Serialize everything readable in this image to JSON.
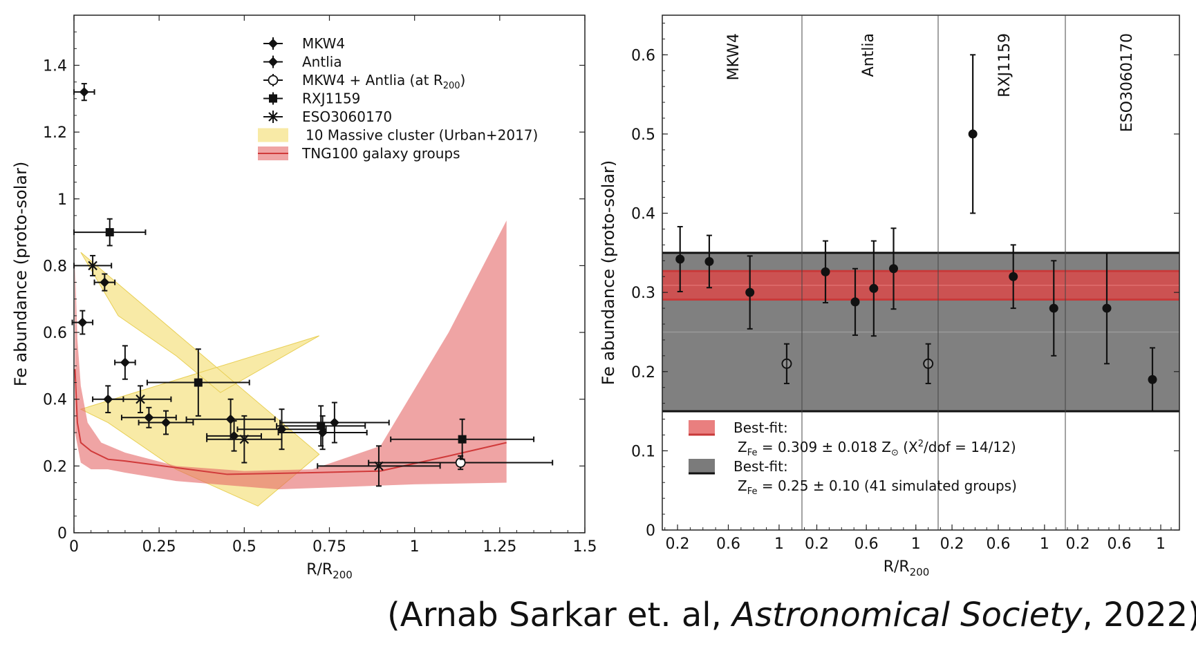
{
  "left": {
    "chart_data": {
      "type": "scatter",
      "xlabel": "R/R",
      "xlabel_sub": "200",
      "ylabel": "Fe abundance (proto-solar)",
      "xlim": [
        0,
        1.5
      ],
      "ylim": [
        0,
        1.55
      ],
      "xticks": [
        0,
        0.25,
        0.5,
        0.75,
        1,
        1.25,
        1.5
      ],
      "xtick_labels": [
        "0",
        "0.25",
        "0.5",
        "0.75",
        "1",
        "1.25",
        "1.5"
      ],
      "yticks": [
        0,
        0.2,
        0.4,
        0.6,
        0.8,
        1,
        1.2,
        1.4
      ],
      "ytick_labels": [
        "0",
        "0.2",
        "0.4",
        "0.6",
        "0.8",
        "1",
        "1.2",
        "1.4"
      ],
      "legend_position": "top-right",
      "series": [
        {
          "name": "MKW4",
          "marker": "diamond-filled",
          "points": [
            {
              "x": 0.03,
              "y": 1.32,
              "xe": 0.03,
              "ye": 0.025
            },
            {
              "x": 0.09,
              "y": 0.75,
              "xe": 0.03,
              "ye": 0.025
            },
            {
              "x": 0.15,
              "y": 0.51,
              "xe": 0.03,
              "ye": 0.05
            },
            {
              "x": 0.27,
              "y": 0.33,
              "xe": 0.08,
              "ye": 0.035
            },
            {
              "x": 0.46,
              "y": 0.34,
              "xe": 0.13,
              "ye": 0.06
            },
            {
              "x": 0.61,
              "y": 0.31,
              "xe": 0.13,
              "ye": 0.06
            }
          ]
        },
        {
          "name": "Antlia",
          "marker": "diamond-filled",
          "points": [
            {
              "x": 0.025,
              "y": 0.63,
              "xe": 0.03,
              "ye": 0.035
            },
            {
              "x": 0.1,
              "y": 0.4,
              "xe": 0.045,
              "ye": 0.04
            },
            {
              "x": 0.22,
              "y": 0.345,
              "xe": 0.08,
              "ye": 0.03
            },
            {
              "x": 0.47,
              "y": 0.29,
              "xe": 0.08,
              "ye": 0.045
            },
            {
              "x": 0.73,
              "y": 0.3,
              "xe": 0.13,
              "ye": 0.05
            },
            {
              "x": 0.765,
              "y": 0.33,
              "xe": 0.16,
              "ye": 0.06
            }
          ]
        },
        {
          "name": "MKW4 + Antlia (at R",
          "name_sub": "200",
          "name_tail": ")",
          "marker": "circle-open",
          "points": [
            {
              "x": 1.135,
              "y": 0.21,
              "xe": 0.27,
              "ye": 0.02
            }
          ]
        },
        {
          "name": "RXJ1159",
          "marker": "square-filled",
          "points": [
            {
              "x": 0.105,
              "y": 0.9,
              "xe": 0.105,
              "ye": 0.04
            },
            {
              "x": 0.365,
              "y": 0.45,
              "xe": 0.15,
              "ye": 0.1
            },
            {
              "x": 0.725,
              "y": 0.32,
              "xe": 0.13,
              "ye": 0.06
            },
            {
              "x": 1.14,
              "y": 0.28,
              "xe": 0.21,
              "ye": 0.06
            }
          ]
        },
        {
          "name": "ESO3060170",
          "marker": "x-star",
          "points": [
            {
              "x": 0.055,
              "y": 0.8,
              "xe": 0.055,
              "ye": 0.03
            },
            {
              "x": 0.195,
              "y": 0.4,
              "xe": 0.09,
              "ye": 0.04
            },
            {
              "x": 0.5,
              "y": 0.28,
              "xe": 0.11,
              "ye": 0.07
            },
            {
              "x": 0.895,
              "y": 0.2,
              "xe": 0.18,
              "ye": 0.06
            }
          ]
        }
      ],
      "bands": [
        {
          "name": "10 Massive cluster (Urban+2017)",
          "color": "#f3d85c",
          "opacity": 0.55,
          "upper": [
            [
              0.02,
              0.84
            ],
            [
              0.13,
              0.65
            ],
            [
              0.3,
              0.53
            ],
            [
              0.43,
              0.42
            ],
            [
              0.72,
              0.59
            ]
          ],
          "lower": [
            [
              0.02,
              0.37
            ],
            [
              0.1,
              0.33
            ],
            [
              0.3,
              0.19
            ],
            [
              0.54,
              0.08
            ],
            [
              0.72,
              0.235
            ]
          ]
        },
        {
          "name": "TNG100 galaxy groups",
          "color": "#e56868",
          "opacity": 0.6,
          "upper": [
            [
              0.003,
              0.81
            ],
            [
              0.01,
              0.58
            ],
            [
              0.02,
              0.44
            ],
            [
              0.04,
              0.33
            ],
            [
              0.08,
              0.27
            ],
            [
              0.15,
              0.24
            ],
            [
              0.3,
              0.2
            ],
            [
              0.5,
              0.185
            ],
            [
              0.7,
              0.19
            ],
            [
              0.9,
              0.26
            ],
            [
              1.1,
              0.6
            ],
            [
              1.27,
              0.935
            ]
          ],
          "lower": [
            [
              1.27,
              0.15
            ],
            [
              1.0,
              0.145
            ],
            [
              0.6,
              0.13
            ],
            [
              0.3,
              0.155
            ],
            [
              0.15,
              0.18
            ],
            [
              0.1,
              0.19
            ],
            [
              0.05,
              0.19
            ],
            [
              0.02,
              0.21
            ],
            [
              0.003,
              0.3
            ]
          ],
          "median": [
            [
              0.003,
              0.49
            ],
            [
              0.01,
              0.33
            ],
            [
              0.02,
              0.27
            ],
            [
              0.05,
              0.245
            ],
            [
              0.1,
              0.22
            ],
            [
              0.15,
              0.215
            ],
            [
              0.3,
              0.195
            ],
            [
              0.45,
              0.175
            ],
            [
              0.7,
              0.18
            ],
            [
              0.9,
              0.185
            ],
            [
              1.1,
              0.23
            ],
            [
              1.27,
              0.27
            ]
          ]
        }
      ]
    }
  },
  "right": {
    "chart_data": {
      "type": "scatter",
      "xlabel": "R/R",
      "xlabel_sub": "200",
      "ylabel": "Fe abundance (proto-solar)",
      "ylim": [
        0,
        0.65
      ],
      "yticks": [
        0,
        0.1,
        0.2,
        0.3,
        0.4,
        0.5,
        0.6
      ],
      "ytick_labels": [
        "0",
        "0.1",
        "0.2",
        "0.3",
        "0.4",
        "0.5",
        "0.6"
      ],
      "xtick_labels": [
        "0.2",
        "0.6",
        "1",
        "0.2",
        "0.6",
        "1",
        "0.2",
        "0.6",
        "1",
        "0.2",
        "0.6",
        "1"
      ],
      "panels": [
        {
          "label": "MKW4",
          "xlim": [
            0.08,
            1.18
          ],
          "ticks": [
            0.2,
            0.6,
            1
          ]
        },
        {
          "label": "Antlia",
          "xlim": [
            0.08,
            1.18
          ],
          "ticks": [
            0.2,
            0.6,
            1
          ]
        },
        {
          "label": "RXJ1159",
          "xlim": [
            0.08,
            1.18
          ],
          "ticks": [
            0.2,
            0.6,
            1
          ]
        },
        {
          "label": "ESO3060170",
          "xlim": [
            0.08,
            1.18
          ],
          "ticks": [
            0.2,
            0.6,
            1
          ]
        }
      ],
      "points": [
        {
          "panel": 0,
          "x": 0.22,
          "y": 0.342,
          "ye": 0.041,
          "marker": "filled"
        },
        {
          "panel": 0,
          "x": 0.45,
          "y": 0.339,
          "ye": 0.033,
          "marker": "filled"
        },
        {
          "panel": 0,
          "x": 0.77,
          "y": 0.3,
          "ye": 0.046,
          "marker": "filled"
        },
        {
          "panel": 0,
          "x": 1.06,
          "y": 0.21,
          "ye": 0.025,
          "marker": "open"
        },
        {
          "panel": 1,
          "x": 0.27,
          "y": 0.326,
          "ye": 0.039,
          "marker": "filled"
        },
        {
          "panel": 1,
          "x": 0.51,
          "y": 0.288,
          "ye": 0.042,
          "marker": "filled"
        },
        {
          "panel": 1,
          "x": 0.66,
          "y": 0.305,
          "ye": 0.06,
          "marker": "filled"
        },
        {
          "panel": 1,
          "x": 0.82,
          "y": 0.33,
          "ye": 0.051,
          "marker": "filled"
        },
        {
          "panel": 1,
          "x": 1.1,
          "y": 0.21,
          "ye": 0.025,
          "marker": "open"
        },
        {
          "panel": 2,
          "x": 0.38,
          "y": 0.5,
          "ye": 0.1,
          "marker": "filled"
        },
        {
          "panel": 2,
          "x": 0.73,
          "y": 0.32,
          "ye": 0.04,
          "marker": "filled"
        },
        {
          "panel": 2,
          "x": 1.08,
          "y": 0.28,
          "ye": 0.06,
          "marker": "filled"
        },
        {
          "panel": 3,
          "x": 0.48,
          "y": 0.28,
          "ye": 0.07,
          "marker": "filled"
        },
        {
          "panel": 3,
          "x": 0.92,
          "y": 0.19,
          "ye": 0.04,
          "marker": "filled"
        }
      ],
      "bands": [
        {
          "name": "simulated",
          "lo": 0.15,
          "hi": 0.35,
          "mid": 0.25,
          "color": "#808080",
          "edge": "#111111"
        },
        {
          "name": "best-fit",
          "lo": 0.291,
          "hi": 0.327,
          "mid": 0.309,
          "color": "#d94a4a",
          "edge": "#c83a3a"
        }
      ],
      "legend": [
        {
          "line1": "Best-fit:",
          "line2_pre": "Z",
          "line2_sub": "Fe",
          "line2_post": " = 0.309 ± 0.018 Z",
          "line2_sun": "⊙",
          "line2_tail": " (Χ",
          "line2_sup": "2",
          "line2_end": "/dof = 14/12)",
          "color": "#e56868",
          "edge": "#c83a3a"
        },
        {
          "line1": "Best-fit:",
          "line2_pre": "Z",
          "line2_sub": "Fe",
          "line2_post": " = 0.25 ± 0.10 (41 simulated groups)",
          "color": "#7b7b7b",
          "edge": "#111111"
        }
      ]
    }
  },
  "caption": {
    "open": "(Arnab Sarkar et. al, ",
    "journal": "Astronomical Society",
    "close": ", 2022)"
  }
}
